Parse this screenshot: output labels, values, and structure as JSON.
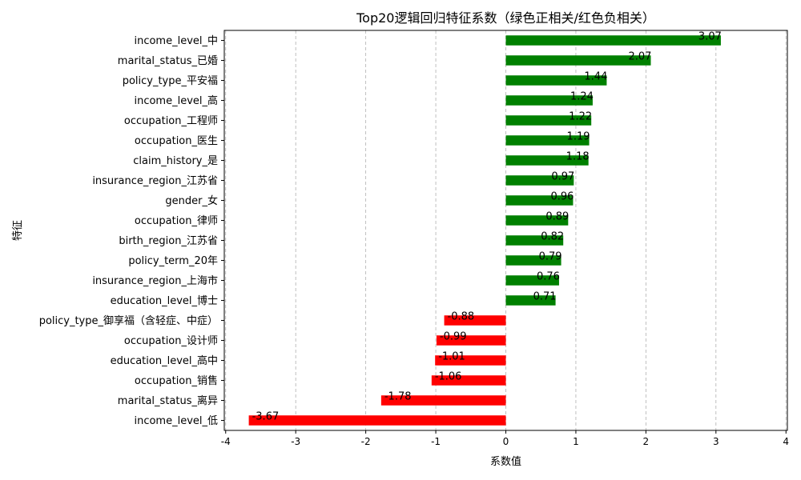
{
  "chart_data": {
    "type": "bar",
    "orientation": "horizontal",
    "title": "Top20逻辑回归特征系数（绿色正相关/红色负相关）",
    "xlabel": "系数值",
    "ylabel": "特征",
    "xlim": [
      -4.02,
      4.02
    ],
    "xticks": [
      -4,
      -3,
      -2,
      -1,
      0,
      1,
      2,
      3,
      4
    ],
    "grid": "x-dashed",
    "positive_color": "#008000",
    "negative_color": "#ff0000",
    "categories": [
      "income_level_中",
      "marital_status_已婚",
      "policy_type_平安福",
      "income_level_高",
      "occupation_工程师",
      "occupation_医生",
      "claim_history_是",
      "insurance_region_江苏省",
      "gender_女",
      "occupation_律师",
      "birth_region_江苏省",
      "policy_term_20年",
      "insurance_region_上海市",
      "education_level_博士",
      "policy_type_御享福（含轻症、中症）",
      "occupation_设计师",
      "education_level_高中",
      "occupation_销售",
      "marital_status_离异",
      "income_level_低"
    ],
    "values": [
      3.07,
      2.07,
      1.44,
      1.24,
      1.22,
      1.19,
      1.18,
      0.97,
      0.96,
      0.89,
      0.82,
      0.79,
      0.76,
      0.71,
      -0.88,
      -0.99,
      -1.01,
      -1.06,
      -1.78,
      -3.67
    ],
    "data_labels": [
      "3.07",
      "2.07",
      "1.44",
      "1.24",
      "1.22",
      "1.19",
      "1.18",
      "0.97",
      "0.96",
      "0.89",
      "0.82",
      "0.79",
      "0.76",
      "0.71",
      "-0.88",
      "-0.99",
      "-1.01",
      "-1.06",
      "-1.78",
      "-3.67"
    ]
  }
}
